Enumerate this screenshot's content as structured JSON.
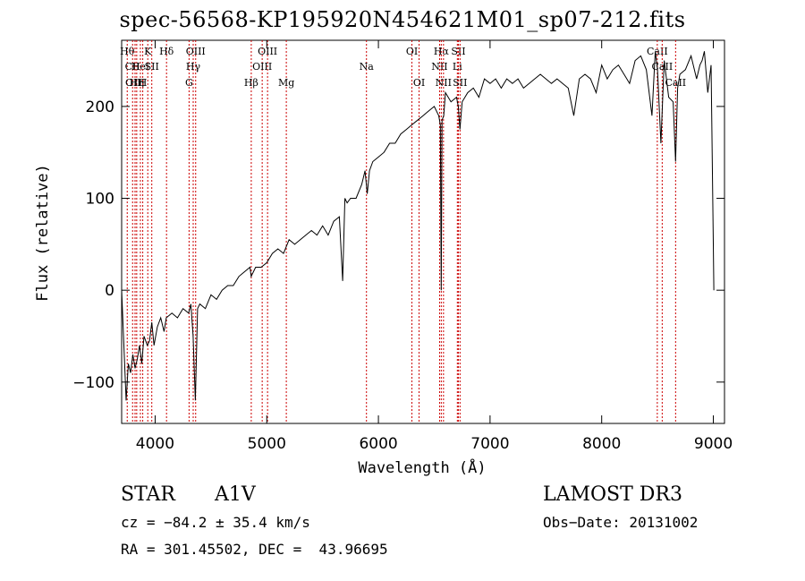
{
  "chart_data": {
    "type": "line",
    "title": "spec-56568-KP195920N454621M01_sp07-212.fits",
    "xlabel": "Wavelength (Å)",
    "ylabel": "Flux (relative)",
    "xlim": [
      3700,
      9100
    ],
    "ylim": [
      -145,
      272
    ],
    "xticks": [
      4000,
      5000,
      6000,
      7000,
      8000,
      9000
    ],
    "xtick_labels": [
      "4000",
      "5000",
      "6000",
      "7000",
      "8000",
      "9000"
    ],
    "yticks": [
      -100,
      0,
      100,
      200
    ],
    "ytick_labels": [
      "−100",
      "0",
      "100",
      "200"
    ],
    "series": [
      {
        "name": "spectrum",
        "x": [
          3700,
          3720,
          3740,
          3760,
          3780,
          3800,
          3820,
          3840,
          3860,
          3880,
          3900,
          3930,
          3950,
          3970,
          3990,
          4020,
          4050,
          4080,
          4100,
          4150,
          4200,
          4250,
          4300,
          4320,
          4340,
          4360,
          4380,
          4400,
          4450,
          4500,
          4550,
          4600,
          4650,
          4700,
          4750,
          4800,
          4850,
          4860,
          4880,
          4900,
          4950,
          5000,
          5050,
          5100,
          5150,
          5200,
          5250,
          5300,
          5350,
          5400,
          5450,
          5500,
          5550,
          5600,
          5650,
          5680,
          5700,
          5720,
          5750,
          5800,
          5850,
          5880,
          5900,
          5920,
          5950,
          6000,
          6050,
          6100,
          6150,
          6200,
          6250,
          6300,
          6350,
          6400,
          6450,
          6500,
          6540,
          6555,
          6563,
          6570,
          6585,
          6600,
          6650,
          6700,
          6716,
          6730,
          6750,
          6800,
          6850,
          6900,
          6950,
          7000,
          7050,
          7100,
          7150,
          7200,
          7250,
          7300,
          7350,
          7400,
          7450,
          7500,
          7550,
          7600,
          7650,
          7700,
          7750,
          7800,
          7850,
          7900,
          7950,
          8000,
          8050,
          8100,
          8150,
          8200,
          8250,
          8300,
          8350,
          8400,
          8450,
          8480,
          8500,
          8530,
          8560,
          8600,
          8640,
          8662,
          8680,
          8700,
          8750,
          8800,
          8850,
          8880,
          8900,
          8920,
          8950,
          8980,
          9000,
          9005
        ],
        "y": [
          0,
          -60,
          -120,
          -80,
          -90,
          -70,
          -85,
          -75,
          -60,
          -80,
          -50,
          -60,
          -55,
          -35,
          -60,
          -40,
          -30,
          -45,
          -30,
          -25,
          -30,
          -20,
          -25,
          -15,
          -50,
          -120,
          -20,
          -15,
          -20,
          -5,
          -10,
          0,
          5,
          5,
          15,
          20,
          25,
          15,
          20,
          25,
          25,
          30,
          40,
          45,
          40,
          55,
          50,
          55,
          60,
          65,
          60,
          70,
          60,
          75,
          80,
          10,
          100,
          95,
          100,
          100,
          115,
          130,
          105,
          130,
          140,
          145,
          150,
          160,
          160,
          170,
          175,
          180,
          185,
          190,
          195,
          200,
          190,
          180,
          0,
          185,
          190,
          215,
          205,
          210,
          200,
          175,
          205,
          215,
          220,
          210,
          230,
          225,
          230,
          220,
          230,
          225,
          230,
          220,
          225,
          230,
          235,
          230,
          225,
          230,
          225,
          220,
          190,
          230,
          235,
          230,
          215,
          245,
          230,
          240,
          245,
          235,
          225,
          250,
          255,
          240,
          190,
          260,
          240,
          160,
          250,
          210,
          205,
          140,
          220,
          235,
          240,
          255,
          230,
          245,
          250,
          260,
          215,
          245,
          50,
          0
        ]
      }
    ],
    "line_markers": [
      {
        "wave": 3750,
        "label": "Hθ",
        "row": 1
      },
      {
        "wave": 3798,
        "label": "CII",
        "row": 2
      },
      {
        "wave": 3820,
        "label": "OIII",
        "row": 3
      },
      {
        "wave": 3835,
        "label": "Hη",
        "row": 3
      },
      {
        "wave": 3868,
        "label": "HeI",
        "row": 2
      },
      {
        "wave": 3889,
        "label": "H",
        "row": 3
      },
      {
        "wave": 3934,
        "label": "K",
        "row": 1
      },
      {
        "wave": 3970,
        "label": "SII",
        "row": 2
      },
      {
        "wave": 4102,
        "label": "Hδ",
        "row": 1
      },
      {
        "wave": 4304,
        "label": "G",
        "row": 3
      },
      {
        "wave": 4341,
        "label": "Hγ",
        "row": 2
      },
      {
        "wave": 4363,
        "label": "OIII",
        "row": 1
      },
      {
        "wave": 4861,
        "label": "Hβ",
        "row": 3
      },
      {
        "wave": 4959,
        "label": "OIII",
        "row": 2
      },
      {
        "wave": 5007,
        "label": "OIII",
        "row": 1
      },
      {
        "wave": 5175,
        "label": "Mg",
        "row": 3
      },
      {
        "wave": 5893,
        "label": "Na",
        "row": 2
      },
      {
        "wave": 6300,
        "label": "OI",
        "row": 1
      },
      {
        "wave": 6364,
        "label": "OI",
        "row": 3
      },
      {
        "wave": 6548,
        "label": "NII",
        "row": 2
      },
      {
        "wave": 6563,
        "label": "Hα",
        "row": 1
      },
      {
        "wave": 6583,
        "label": "NII",
        "row": 3
      },
      {
        "wave": 6707,
        "label": "Li",
        "row": 2
      },
      {
        "wave": 6716,
        "label": "SII",
        "row": 1
      },
      {
        "wave": 6731,
        "label": "SII",
        "row": 3
      },
      {
        "wave": 8498,
        "label": "CaII",
        "row": 1
      },
      {
        "wave": 8542,
        "label": "CaII",
        "row": 2
      },
      {
        "wave": 8662,
        "label": "CaII",
        "row": 3
      }
    ]
  },
  "info": {
    "class_label": "STAR",
    "subclass_label": "A1V",
    "survey": "LAMOST DR3",
    "cz": "cz = −84.2 ± 35.4 km/s",
    "obs_date": "Obs−Date: 20131002",
    "coords": "RA = 301.45502, DEC =  43.96695"
  }
}
